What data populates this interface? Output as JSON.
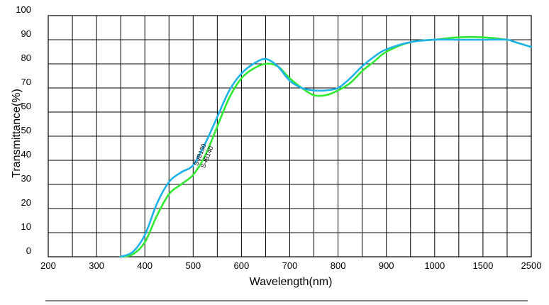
{
  "chart_data": {
    "type": "line",
    "xlabel": "Wavelength(nm)",
    "ylabel": "Transmittance(%)",
    "x_ticks": [
      "200",
      "250",
      "300",
      "350",
      "400",
      "450",
      "500",
      "550",
      "600",
      "650",
      "700",
      "750",
      "800",
      "850",
      "900",
      "950",
      "1000",
      "1250",
      "1500",
      "1750",
      "2500"
    ],
    "x_tick_labels": [
      "200",
      "",
      "300",
      "",
      "400",
      "",
      "500",
      "",
      "600",
      "",
      "700",
      "",
      "800",
      "",
      "900",
      "",
      "1000",
      "",
      "1500",
      "",
      "2500"
    ],
    "y_ticks": [
      0,
      10,
      20,
      30,
      40,
      50,
      60,
      70,
      80,
      90,
      100
    ],
    "ylim": [
      0,
      100
    ],
    "grid": true,
    "legend": "none",
    "series": [
      {
        "name": "S-IB130",
        "color": "#1fb2e8",
        "points": [
          [
            350,
            0
          ],
          [
            375,
            2
          ],
          [
            400,
            9
          ],
          [
            425,
            22
          ],
          [
            450,
            31
          ],
          [
            475,
            35
          ],
          [
            500,
            38
          ],
          [
            525,
            47
          ],
          [
            550,
            58
          ],
          [
            575,
            69
          ],
          [
            600,
            76
          ],
          [
            625,
            80
          ],
          [
            650,
            82
          ],
          [
            675,
            79
          ],
          [
            700,
            73
          ],
          [
            725,
            70
          ],
          [
            750,
            69
          ],
          [
            775,
            69
          ],
          [
            800,
            70
          ],
          [
            825,
            74
          ],
          [
            850,
            79
          ],
          [
            875,
            83
          ],
          [
            900,
            86
          ],
          [
            950,
            89
          ],
          [
            1000,
            90
          ],
          [
            1250,
            90
          ],
          [
            1500,
            90
          ],
          [
            1750,
            90
          ],
          [
            2000,
            89
          ],
          [
            2500,
            87
          ]
        ]
      },
      {
        "name": "S-IB140",
        "color": "#33e833",
        "points": [
          [
            350,
            0
          ],
          [
            375,
            1
          ],
          [
            400,
            6
          ],
          [
            425,
            17
          ],
          [
            450,
            26
          ],
          [
            475,
            30
          ],
          [
            500,
            34
          ],
          [
            525,
            42
          ],
          [
            550,
            54
          ],
          [
            575,
            66
          ],
          [
            600,
            74
          ],
          [
            625,
            78
          ],
          [
            650,
            80
          ],
          [
            675,
            79
          ],
          [
            700,
            74
          ],
          [
            725,
            70
          ],
          [
            750,
            67
          ],
          [
            775,
            67
          ],
          [
            800,
            69
          ],
          [
            825,
            72
          ],
          [
            850,
            77
          ],
          [
            875,
            81
          ],
          [
            900,
            85
          ],
          [
            950,
            89
          ],
          [
            1000,
            90
          ],
          [
            1250,
            91
          ],
          [
            1500,
            91
          ],
          [
            1750,
            90
          ],
          [
            2000,
            89
          ],
          [
            2500,
            87
          ]
        ]
      }
    ]
  }
}
